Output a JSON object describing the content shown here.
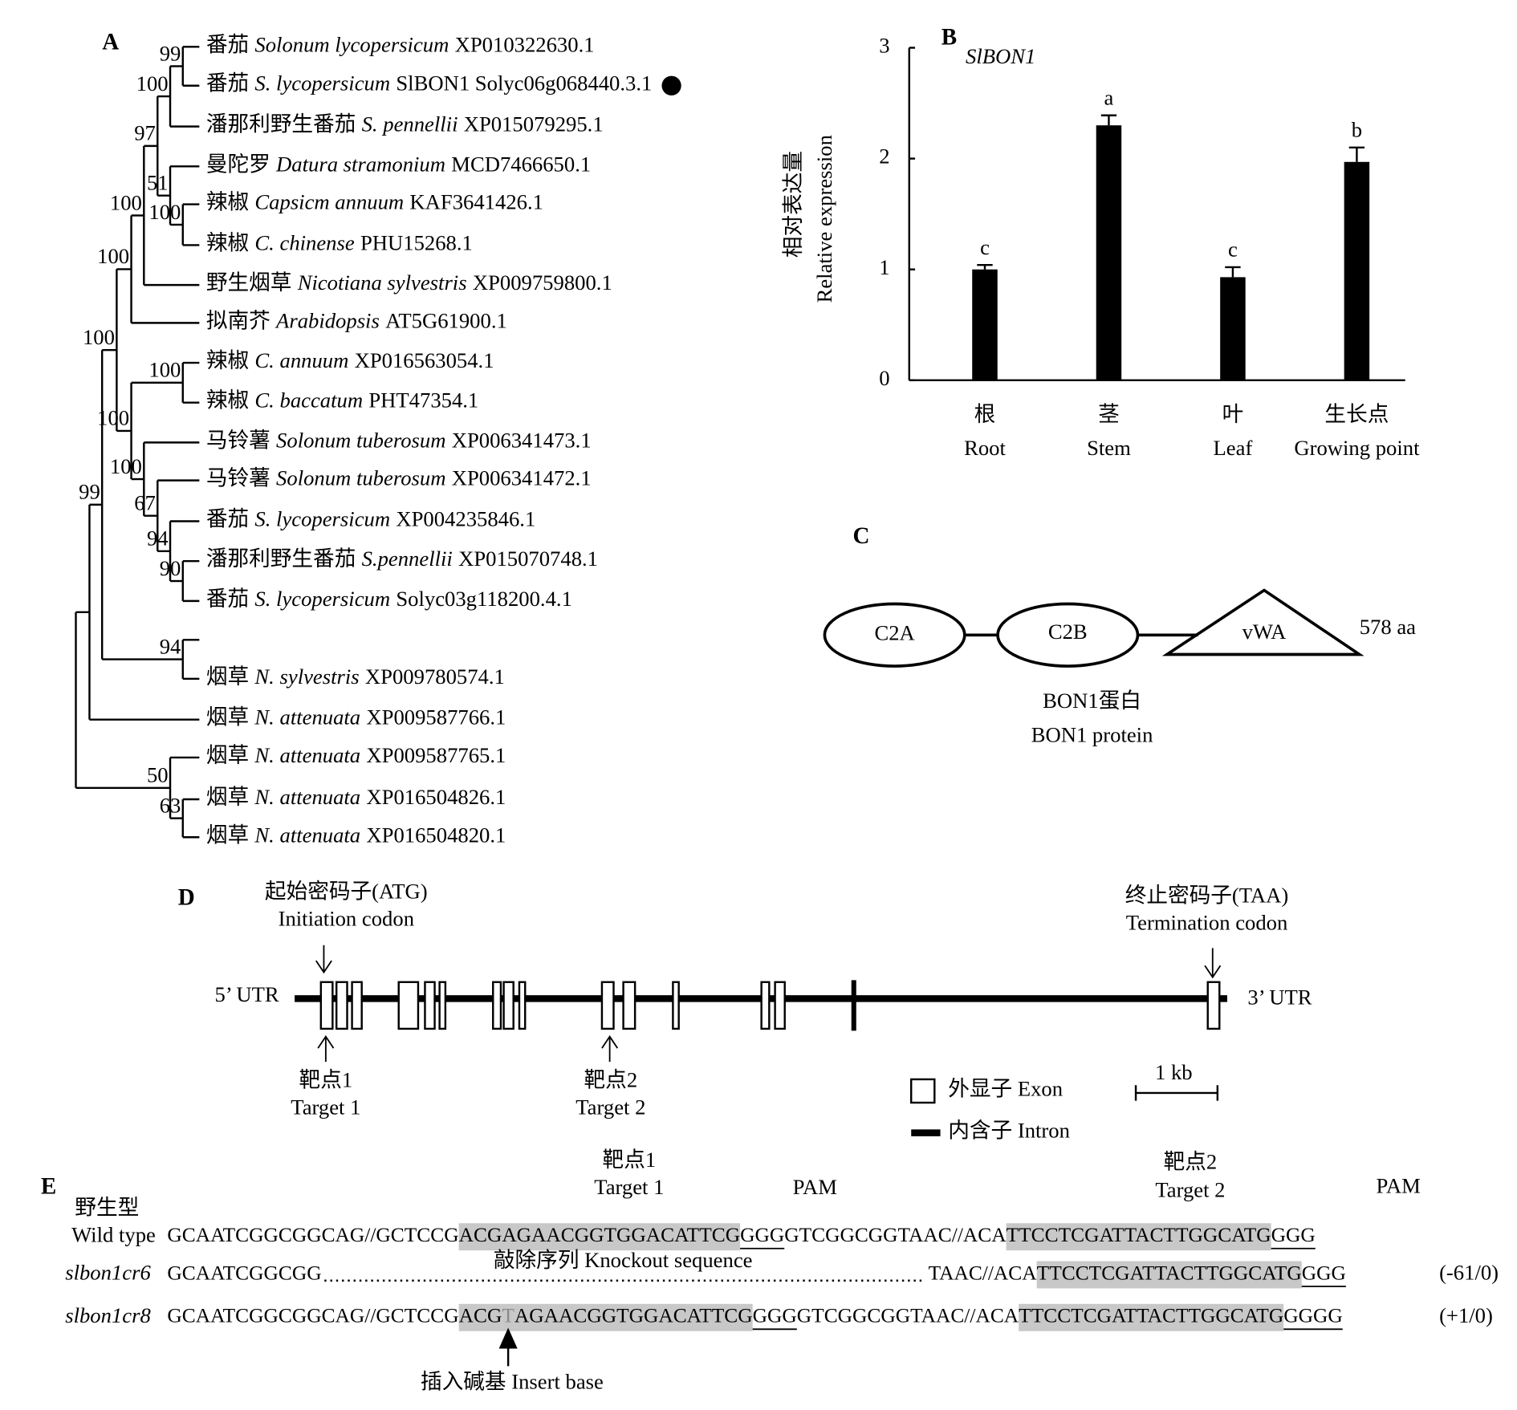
{
  "figure": {
    "panel_labels": [
      "A",
      "B",
      "C",
      "D",
      "E"
    ]
  },
  "tree": {
    "leaves": [
      {
        "cn": "番茄",
        "species": "Solonum lycopersicum",
        "id": "XP010322630.1"
      },
      {
        "cn": "番茄",
        "species": "S. lycopersicum",
        "id": "SlBON1 Solyc06g068440.3.1"
      },
      {
        "cn": "潘那利野生番茄",
        "species": "S. pennellii",
        "id": "XP015079295.1"
      },
      {
        "cn": "曼陀罗",
        "species": "Datura stramonium",
        "id": "MCD7466650.1"
      },
      {
        "cn": "辣椒",
        "species": "Capsicm annuum",
        "id": "KAF3641426.1"
      },
      {
        "cn": "辣椒",
        "species": "C. chinense",
        "id": "PHU15268.1"
      },
      {
        "cn": "野生烟草",
        "species": "Nicotiana sylvestris",
        "id": "XP009759800.1"
      },
      {
        "cn": "拟南芥",
        "species": "Arabidopsis",
        "id": "AT5G61900.1"
      },
      {
        "cn": "辣椒",
        "species": "C. annuum",
        "id": "XP016563054.1"
      },
      {
        "cn": "辣椒",
        "species": "C. baccatum",
        "id": "PHT47354.1"
      },
      {
        "cn": "马铃薯",
        "species": "Solonum tuberosum",
        "id": "XP006341473.1"
      },
      {
        "cn": "马铃薯",
        "species": "Solonum tuberosum",
        "id": "XP006341472.1"
      },
      {
        "cn": "番茄",
        "species": "S. lycopersicum",
        "id": "XP004235846.1"
      },
      {
        "cn": "潘那利野生番茄",
        "species": "S.pennellii",
        "id": "XP015070748.1"
      },
      {
        "cn": "番茄",
        "species": "S. lycopersicum",
        "id": "Solyc03g118200.4.1"
      },
      {
        "cn": "烟草",
        "species": "N. sylvestris",
        "id": "XP009780574.1"
      },
      {
        "cn": "烟草",
        "species": "N. attenuata",
        "id": "XP009587766.1"
      },
      {
        "cn": "烟草",
        "species": "N. attenuata",
        "id": "XP009587765.1"
      },
      {
        "cn": "烟草",
        "species": "N. attenuata",
        "id": "XP016504826.1"
      },
      {
        "cn": "烟草",
        "species": "N. attenuata",
        "id": "XP016504820.1"
      }
    ],
    "bootstrap": [
      99,
      100,
      97,
      100,
      51,
      100,
      100,
      100,
      100,
      100,
      99,
      100,
      67,
      94,
      90,
      94,
      50,
      63
    ]
  },
  "chart_data": {
    "type": "bar",
    "title": "SlBON1",
    "ylabel": [
      "相对表达量",
      "Relative expression"
    ],
    "categories": [
      "Root",
      "Stem",
      "Leaf",
      "Growing point"
    ],
    "categories_cn": [
      "根",
      "茎",
      "叶",
      "生长点"
    ],
    "values": [
      1.0,
      2.3,
      0.93,
      1.97
    ],
    "errors": [
      0.04,
      0.09,
      0.09,
      0.13
    ],
    "annotations": [
      "c",
      "a",
      "c",
      "b"
    ],
    "color": "#000000",
    "ylim": [
      0,
      3
    ],
    "yticks": [
      0,
      1,
      2,
      3
    ]
  },
  "protein": {
    "domains": [
      "C2A",
      "C2B",
      "vWA"
    ],
    "length": "578 aa",
    "caption_cn": "BON1蛋白",
    "caption_en": "BON1 protein"
  },
  "gene": {
    "start_cn": "起始密码子(ATG)",
    "start_en": "Initiation codon",
    "stop_cn": "终止密码子(TAA)",
    "stop_en": "Termination codon",
    "utr5": "5’ UTR",
    "utr3": "3’ UTR",
    "targets": [
      {
        "cn": "靶点1",
        "en": "Target 1"
      },
      {
        "cn": "靶点2",
        "en": "Target 2"
      }
    ],
    "legend": [
      "外显子 Exon",
      "内含子 Intron"
    ],
    "scale": "1 kb"
  },
  "sequences": {
    "pam": "PAM",
    "knockout": "敲除序列 Knockout sequence",
    "insert": "插入碱基 Insert base",
    "rows": [
      {
        "name_cn": "野生型",
        "name": "Wild type",
        "segments": [
          {
            "text": "GCAATCGGCGGCAG//GCTCCG",
            "mark": "plain"
          },
          {
            "text": "ACGAGAACGGTGGACATTCG",
            "mark": "target"
          },
          {
            "text": "GGG",
            "mark": "pam"
          },
          {
            "text": "GTCGGCGGTAAC//ACA",
            "mark": "plain"
          },
          {
            "text": "TTCCTCGATTACTTGGCATG",
            "mark": "target"
          },
          {
            "text": "GGG",
            "mark": "pam"
          }
        ]
      },
      {
        "name": "slbon1cr6",
        "change": "(-61/0)",
        "segments": [
          {
            "text": "GCAATCGGCGG",
            "mark": "plain"
          },
          {
            "mark": "deletion"
          },
          {
            "text": "TAAC//ACA",
            "mark": "plain"
          },
          {
            "text": "TTCCTCGATTACTTGGCATG",
            "mark": "target"
          },
          {
            "text": "GGG",
            "mark": "pam"
          }
        ]
      },
      {
        "name": "slbon1cr8",
        "change": "(+1/0)",
        "segments": [
          {
            "text": "GCAATCGGCGGCAG//GCTCCG",
            "mark": "plain"
          },
          {
            "text": "ACG",
            "mark": "target"
          },
          {
            "text": "T",
            "mark": "insert"
          },
          {
            "text": "AGAACGGTGGACATTCG",
            "mark": "target"
          },
          {
            "text": "GGG",
            "mark": "pam"
          },
          {
            "text": "GTCGGCGGTAAC//ACA",
            "mark": "plain"
          },
          {
            "text": "TTCCTCGATTACTTGGCATG",
            "mark": "target"
          },
          {
            "text": "GGGG",
            "mark": "pam"
          }
        ]
      }
    ]
  }
}
